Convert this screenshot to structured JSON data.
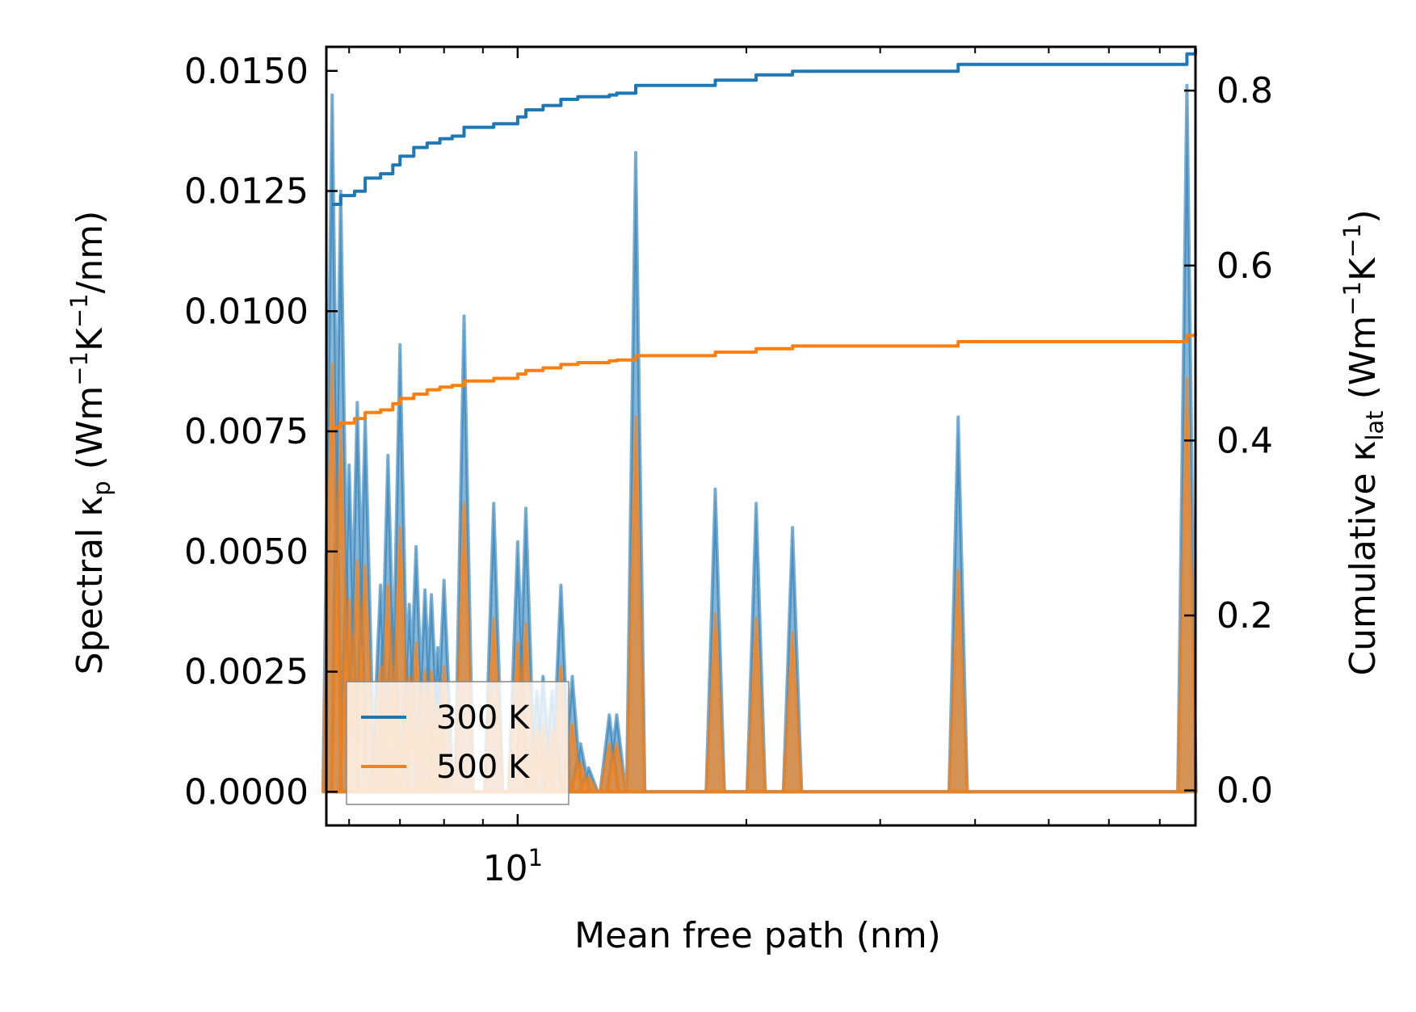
{
  "chart_data": {
    "type": "line",
    "xscale": "log",
    "xlim": [
      5.6,
      78
    ],
    "xlabel": "Mean free path (nm)",
    "x_major_ticks": [
      {
        "value": 10,
        "base": "10",
        "exp": "1"
      }
    ],
    "y_left": {
      "label_main": "Spectral κ",
      "label_sub": "p",
      "label_unit_parts": [
        "(Wm",
        "−1",
        "K",
        "−1",
        "/nm)"
      ],
      "lim": [
        -0.0007,
        0.0155
      ],
      "ticks": [
        {
          "value": 0.0,
          "label": "0.0000"
        },
        {
          "value": 0.0025,
          "label": "0.0025"
        },
        {
          "value": 0.005,
          "label": "0.0050"
        },
        {
          "value": 0.0075,
          "label": "0.0075"
        },
        {
          "value": 0.01,
          "label": "0.0100"
        },
        {
          "value": 0.0125,
          "label": "0.0125"
        },
        {
          "value": 0.015,
          "label": "0.0150"
        }
      ]
    },
    "y_right": {
      "label_main": "Cumulative κ",
      "label_sub": "lat",
      "label_unit_parts": [
        "(Wm",
        "−1",
        "K",
        "−1",
        ")"
      ],
      "lim": [
        -0.04,
        0.85
      ],
      "ticks": [
        {
          "value": 0.0,
          "label": "0.0"
        },
        {
          "value": 0.2,
          "label": "0.2"
        },
        {
          "value": 0.4,
          "label": "0.4"
        },
        {
          "value": 0.6,
          "label": "0.6"
        },
        {
          "value": 0.8,
          "label": "0.8"
        }
      ]
    },
    "spectral_series": [
      {
        "name": "300 K",
        "color": "#1f77b4",
        "fill": "#1f77b4",
        "peaks": [
          [
            5.7,
            0.0145
          ],
          [
            5.85,
            0.0125
          ],
          [
            6.0,
            0.0068
          ],
          [
            6.15,
            0.0081
          ],
          [
            6.3,
            0.0078
          ],
          [
            6.6,
            0.0043
          ],
          [
            6.75,
            0.007
          ],
          [
            6.85,
            0.0039
          ],
          [
            7.0,
            0.0093
          ],
          [
            7.2,
            0.0039
          ],
          [
            7.35,
            0.0051
          ],
          [
            7.55,
            0.0042
          ],
          [
            7.7,
            0.0041
          ],
          [
            7.85,
            0.003
          ],
          [
            8.0,
            0.0044
          ],
          [
            8.5,
            0.0099
          ],
          [
            9.3,
            0.006
          ],
          [
            10.0,
            0.0052
          ],
          [
            10.25,
            0.0059
          ],
          [
            10.6,
            0.0021
          ],
          [
            10.8,
            0.0024
          ],
          [
            11.1,
            0.0021
          ],
          [
            11.4,
            0.0043
          ],
          [
            11.8,
            0.0024
          ],
          [
            12.1,
            0.001
          ],
          [
            12.4,
            0.0005
          ],
          [
            13.2,
            0.0016
          ],
          [
            13.5,
            0.0016
          ],
          [
            14.3,
            0.0133
          ],
          [
            18.2,
            0.0063
          ],
          [
            20.6,
            0.006
          ],
          [
            23.0,
            0.0055
          ],
          [
            38.0,
            0.0078
          ],
          [
            76.0,
            0.0147
          ]
        ]
      },
      {
        "name": "500 K",
        "color": "#ff7f0e",
        "fill": "#ff7f0e",
        "peaks": [
          [
            5.7,
            0.0089
          ],
          [
            5.85,
            0.0075
          ],
          [
            6.0,
            0.004
          ],
          [
            6.15,
            0.0048
          ],
          [
            6.3,
            0.0047
          ],
          [
            6.6,
            0.0026
          ],
          [
            6.75,
            0.0043
          ],
          [
            6.85,
            0.0024
          ],
          [
            7.0,
            0.0055
          ],
          [
            7.2,
            0.0024
          ],
          [
            7.35,
            0.0031
          ],
          [
            7.55,
            0.0025
          ],
          [
            7.7,
            0.0025
          ],
          [
            7.85,
            0.0018
          ],
          [
            8.0,
            0.0026
          ],
          [
            8.5,
            0.006
          ],
          [
            9.3,
            0.0036
          ],
          [
            10.0,
            0.0031
          ],
          [
            10.25,
            0.0035
          ],
          [
            10.6,
            0.0013
          ],
          [
            10.8,
            0.0014
          ],
          [
            11.1,
            0.0013
          ],
          [
            11.4,
            0.0026
          ],
          [
            11.8,
            0.0014
          ],
          [
            12.1,
            0.0006
          ],
          [
            12.4,
            0.0003
          ],
          [
            13.2,
            0.001
          ],
          [
            13.5,
            0.001
          ],
          [
            14.3,
            0.0078
          ],
          [
            18.2,
            0.0037
          ],
          [
            20.6,
            0.0036
          ],
          [
            23.0,
            0.0033
          ],
          [
            38.0,
            0.0046
          ],
          [
            76.0,
            0.0086
          ]
        ]
      }
    ],
    "cumulative_series": [
      {
        "name": "300 K",
        "color": "#1f77b4",
        "points": [
          [
            5.7,
            0.67
          ],
          [
            5.85,
            0.68
          ],
          [
            6.1,
            0.685
          ],
          [
            6.3,
            0.7
          ],
          [
            6.6,
            0.705
          ],
          [
            6.85,
            0.715
          ],
          [
            7.0,
            0.725
          ],
          [
            7.3,
            0.735
          ],
          [
            7.6,
            0.74
          ],
          [
            7.9,
            0.745
          ],
          [
            8.2,
            0.748
          ],
          [
            8.5,
            0.758
          ],
          [
            9.3,
            0.762
          ],
          [
            10.0,
            0.77
          ],
          [
            10.25,
            0.778
          ],
          [
            10.8,
            0.783
          ],
          [
            11.4,
            0.79
          ],
          [
            12.0,
            0.793
          ],
          [
            13.2,
            0.795
          ],
          [
            13.5,
            0.797
          ],
          [
            14.3,
            0.806
          ],
          [
            18.2,
            0.812
          ],
          [
            20.6,
            0.818
          ],
          [
            23.0,
            0.822
          ],
          [
            38.0,
            0.83
          ],
          [
            76.0,
            0.842
          ],
          [
            78.0,
            0.848
          ]
        ]
      },
      {
        "name": "500 K",
        "color": "#ff7f0e",
        "points": [
          [
            5.7,
            0.415
          ],
          [
            5.85,
            0.42
          ],
          [
            6.1,
            0.425
          ],
          [
            6.3,
            0.432
          ],
          [
            6.6,
            0.435
          ],
          [
            6.85,
            0.442
          ],
          [
            7.0,
            0.448
          ],
          [
            7.3,
            0.453
          ],
          [
            7.6,
            0.458
          ],
          [
            7.9,
            0.461
          ],
          [
            8.2,
            0.463
          ],
          [
            8.5,
            0.468
          ],
          [
            9.3,
            0.471
          ],
          [
            10.0,
            0.476
          ],
          [
            10.25,
            0.48
          ],
          [
            10.8,
            0.483
          ],
          [
            11.4,
            0.487
          ],
          [
            12.0,
            0.489
          ],
          [
            13.2,
            0.491
          ],
          [
            13.5,
            0.492
          ],
          [
            14.3,
            0.497
          ],
          [
            18.2,
            0.501
          ],
          [
            20.6,
            0.505
          ],
          [
            23.0,
            0.508
          ],
          [
            38.0,
            0.513
          ],
          [
            76.0,
            0.52
          ],
          [
            78.0,
            0.524
          ]
        ]
      }
    ],
    "legend": {
      "position": "lower-left",
      "entries": [
        {
          "label": "300 K",
          "color": "#1f77b4"
        },
        {
          "label": "500 K",
          "color": "#ff7f0e"
        }
      ]
    }
  }
}
